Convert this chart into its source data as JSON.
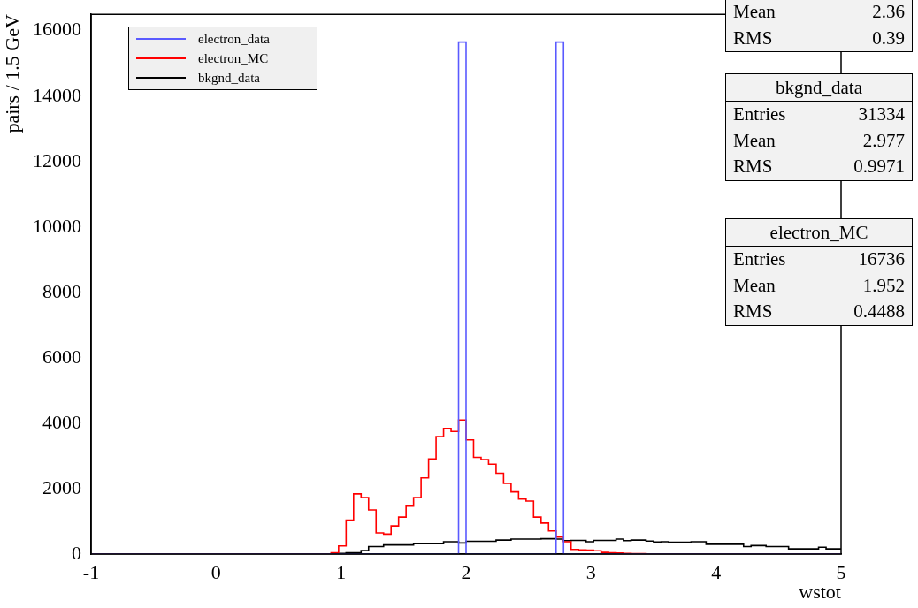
{
  "chart_data": {
    "type": "histogram",
    "xlabel": "wstot",
    "ylabel": "pairs / 1.5 GeV",
    "bins": [
      -1,
      -0.94,
      -0.88,
      -0.82,
      -0.76,
      -0.7,
      -0.64,
      -0.58,
      -0.52,
      -0.46,
      -0.4,
      -0.34,
      -0.28,
      -0.22,
      -0.16,
      -0.1,
      -0.04,
      0.02,
      0.08,
      0.14,
      0.2,
      0.26,
      0.32,
      0.38,
      0.44,
      0.5,
      0.56,
      0.62,
      0.68,
      0.74,
      0.8,
      0.86,
      0.92,
      0.98,
      1.04,
      1.1,
      1.16,
      1.22,
      1.28,
      1.34,
      1.4,
      1.46,
      1.52,
      1.58,
      1.64,
      1.7,
      1.76,
      1.82,
      1.88,
      1.94,
      2.0,
      2.06,
      2.12,
      2.18,
      2.24,
      2.3,
      2.36,
      2.42,
      2.48,
      2.54,
      2.6,
      2.66,
      2.72,
      2.78,
      2.84,
      2.9,
      2.96,
      3.02,
      3.08,
      3.14,
      3.2,
      3.26,
      3.32,
      3.38,
      3.44,
      3.5,
      3.56,
      3.62,
      3.68,
      3.74,
      3.8,
      3.86,
      3.92,
      3.98,
      4.04,
      4.1,
      4.16,
      4.22,
      4.28,
      4.34,
      4.4,
      4.46,
      4.52,
      4.58,
      4.64,
      4.7,
      4.76,
      4.82,
      4.88,
      4.94,
      5
    ],
    "series": [
      {
        "name": "electron_data",
        "color": "#5a5aff",
        "values": [
          0,
          0,
          0,
          0,
          0,
          0,
          0,
          0,
          0,
          0,
          0,
          0,
          0,
          0,
          0,
          0,
          0,
          0,
          0,
          0,
          0,
          0,
          0,
          0,
          0,
          0,
          0,
          0,
          0,
          0,
          0,
          0,
          0,
          0,
          0,
          0,
          0,
          0,
          0,
          0,
          0,
          0,
          0,
          0,
          0,
          0,
          0,
          0,
          0,
          15650,
          0,
          0,
          0,
          0,
          0,
          0,
          0,
          0,
          0,
          0,
          0,
          0,
          15650,
          0,
          0,
          0,
          0,
          0,
          0,
          0,
          0,
          0,
          0,
          0,
          0,
          0,
          0,
          0,
          0,
          0,
          0,
          0,
          0,
          0,
          0,
          0,
          0,
          0,
          0,
          0,
          0,
          0,
          0,
          0,
          0,
          0,
          0,
          0,
          0,
          0
        ]
      },
      {
        "name": "electron_MC",
        "color": "#ff0000",
        "values": [
          0,
          0,
          0,
          0,
          0,
          0,
          0,
          0,
          0,
          0,
          0,
          0,
          0,
          0,
          0,
          0,
          0,
          0,
          0,
          0,
          0,
          0,
          0,
          0,
          0,
          0,
          0,
          0,
          0,
          0,
          0,
          0,
          40,
          250,
          1040,
          1840,
          1730,
          1350,
          650,
          610,
          860,
          1130,
          1470,
          1730,
          2330,
          2910,
          3590,
          3840,
          3750,
          4100,
          3490,
          2960,
          2890,
          2750,
          2470,
          2160,
          1900,
          1680,
          1620,
          1130,
          950,
          710,
          520,
          380,
          140,
          130,
          120,
          100,
          50,
          40,
          30,
          20,
          10,
          10,
          0,
          0,
          0,
          0,
          0,
          0,
          0,
          0,
          0,
          0,
          0,
          0,
          0,
          0,
          0,
          0,
          0,
          0,
          0,
          0,
          0,
          0,
          0,
          0,
          0,
          0
        ]
      },
      {
        "name": "bkgnd_data",
        "color": "#000000",
        "values": [
          0,
          0,
          0,
          0,
          0,
          0,
          0,
          0,
          0,
          0,
          0,
          0,
          0,
          0,
          0,
          0,
          0,
          0,
          0,
          0,
          0,
          0,
          0,
          0,
          0,
          0,
          0,
          0,
          0,
          0,
          0,
          0,
          0,
          20,
          40,
          40,
          110,
          230,
          230,
          280,
          280,
          280,
          280,
          320,
          320,
          320,
          320,
          380,
          380,
          340,
          390,
          390,
          390,
          390,
          430,
          430,
          460,
          460,
          460,
          460,
          470,
          470,
          460,
          410,
          420,
          420,
          380,
          420,
          420,
          420,
          460,
          410,
          430,
          430,
          400,
          370,
          380,
          360,
          360,
          360,
          380,
          380,
          300,
          300,
          300,
          300,
          300,
          230,
          260,
          260,
          230,
          230,
          230,
          160,
          160,
          160,
          160,
          210,
          160,
          160
        ]
      }
    ],
    "xlim": [
      -1,
      5
    ],
    "xticks": [
      -1,
      0,
      1,
      2,
      3,
      4,
      5
    ],
    "ylim": [
      0,
      16500
    ],
    "yticks": [
      0,
      2000,
      4000,
      6000,
      8000,
      10000,
      12000,
      14000,
      16000
    ],
    "legend": "top left",
    "annotations": [
      "Mean\t2.36\nRMS\t0.39",
      "bkgnd_data\nEntries\t31334\nMean\t2.977\nRMS\t0.9971",
      "electron_MC\nEntries\t16736\nMean\t1.952\nRMS\t0.4488"
    ]
  }
}
